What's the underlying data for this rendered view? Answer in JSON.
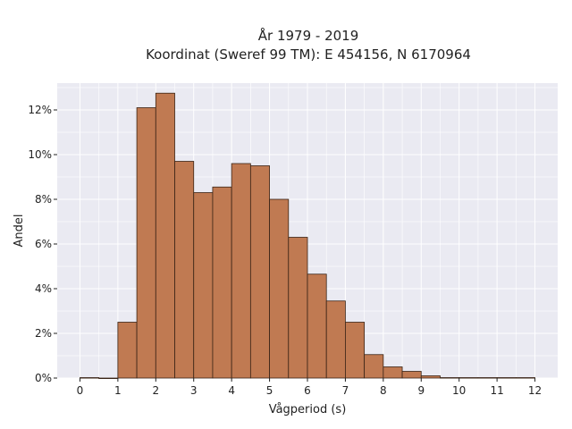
{
  "chart_data": {
    "type": "bar",
    "title_lines": [
      "År 1979 - 2019",
      "Koordinat (Sweref 99 TM): E 454156, N 6170964"
    ],
    "xlabel": "Vågperiod (s)",
    "ylabel": "Andel",
    "xlim": [
      -0.6,
      12.6
    ],
    "ylim": [
      0,
      13.2
    ],
    "x_ticks": [
      0,
      1,
      2,
      3,
      4,
      5,
      6,
      7,
      8,
      9,
      10,
      11,
      12
    ],
    "y_ticks": [
      0,
      2,
      4,
      6,
      8,
      10,
      12
    ],
    "y_tick_labels": [
      "0%",
      "2%",
      "4%",
      "6%",
      "8%",
      "10%",
      "12%"
    ],
    "bin_width": 0.5,
    "bins": [
      {
        "x": 0.0,
        "value": 0.02
      },
      {
        "x": 0.5,
        "value": 0.0
      },
      {
        "x": 1.0,
        "value": 2.5
      },
      {
        "x": 1.5,
        "value": 12.1
      },
      {
        "x": 2.0,
        "value": 12.75
      },
      {
        "x": 2.5,
        "value": 9.7
      },
      {
        "x": 3.0,
        "value": 8.3
      },
      {
        "x": 3.5,
        "value": 8.55
      },
      {
        "x": 4.0,
        "value": 9.6
      },
      {
        "x": 4.5,
        "value": 9.5
      },
      {
        "x": 5.0,
        "value": 8.0
      },
      {
        "x": 5.5,
        "value": 6.3
      },
      {
        "x": 6.0,
        "value": 4.65
      },
      {
        "x": 6.5,
        "value": 3.45
      },
      {
        "x": 7.0,
        "value": 2.5
      },
      {
        "x": 7.5,
        "value": 1.05
      },
      {
        "x": 8.0,
        "value": 0.5
      },
      {
        "x": 8.5,
        "value": 0.3
      },
      {
        "x": 9.0,
        "value": 0.1
      },
      {
        "x": 9.5,
        "value": 0.02
      },
      {
        "x": 10.0,
        "value": 0.02
      },
      {
        "x": 10.5,
        "value": 0.02
      },
      {
        "x": 11.0,
        "value": 0.02
      },
      {
        "x": 11.5,
        "value": 0.02
      }
    ],
    "grid": true,
    "colors": {
      "bar_fill": "#c07a52",
      "bar_edge": "#3a2416",
      "plot_background": "#eaeaf2",
      "grid": "#ffffff"
    }
  }
}
